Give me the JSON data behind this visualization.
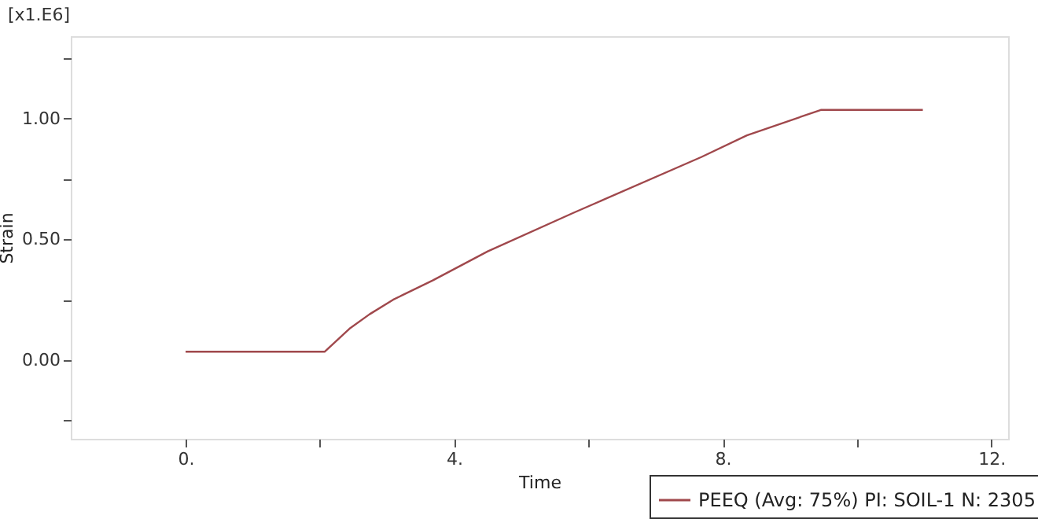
{
  "chart_data": {
    "type": "line",
    "xlabel": "Time",
    "ylabel": "Strain",
    "annotations": [
      "[x1.E6]"
    ],
    "x": [
      0,
      2.07,
      2.44,
      2.74,
      3.09,
      3.68,
      4.5,
      5.78,
      7.68,
      8.36,
      9.46,
      10.98
    ],
    "series": [
      {
        "name": "PEEQ (Avg: 75%) PI: SOIL-1 N: 2305",
        "color": "#a0484c",
        "values": [
          0.035,
          0.035,
          0.13,
          0.19,
          0.25,
          0.33,
          0.45,
          0.61,
          0.84,
          0.93,
          1.035,
          1.035
        ]
      }
    ],
    "xlim": [
      -1.71,
      12.25
    ],
    "ylim": [
      -0.325,
      1.34
    ],
    "xticks": [
      {
        "value": 0,
        "label": "0."
      },
      {
        "value": 2,
        "label": null
      },
      {
        "value": 4,
        "label": "4."
      },
      {
        "value": 6,
        "label": null
      },
      {
        "value": 8,
        "label": "8."
      },
      {
        "value": 10,
        "label": null
      },
      {
        "value": 12,
        "label": "12."
      }
    ],
    "yticks": [
      {
        "value": -0.25,
        "label": null
      },
      {
        "value": 0,
        "label": "0.00"
      },
      {
        "value": 0.25,
        "label": null
      },
      {
        "value": 0.5,
        "label": "0.50"
      },
      {
        "value": 0.75,
        "label": null
      },
      {
        "value": 1.0,
        "label": "1.00"
      },
      {
        "value": 1.25,
        "label": null
      }
    ],
    "grid": false,
    "legend": "bottom right",
    "marker": "none",
    "line_style": "solid"
  }
}
